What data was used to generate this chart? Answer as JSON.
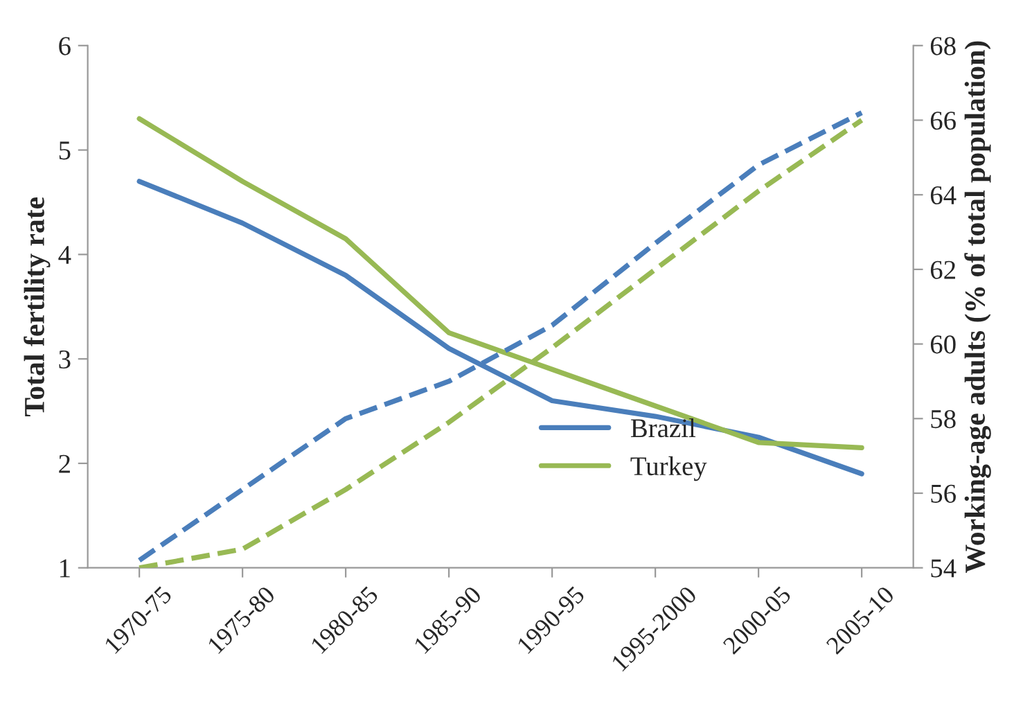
{
  "chart_data": {
    "type": "line",
    "ylabel": "Total fertility rate",
    "y2label": "Working-age adults (% of total population)",
    "categories": [
      "1970-75",
      "1975-80",
      "1980-85",
      "1985-90",
      "1990-95",
      "1995-2000",
      "2000-05",
      "2005-10"
    ],
    "series": [
      {
        "name": "Brazil",
        "color": "#4a7ebb",
        "values": [
          4.7,
          4.3,
          3.8,
          3.1,
          2.6,
          2.45,
          2.25,
          1.9
        ],
        "line_style": "solid"
      },
      {
        "name": "Turkey",
        "color": "#98b954",
        "values": [
          5.3,
          4.7,
          4.15,
          3.25,
          2.9,
          2.55,
          2.2,
          2.15
        ],
        "line_style": "solid"
      },
      {
        "color": "#4a7ebb",
        "values": [
          54.2,
          56.1,
          58.0,
          59.0,
          60.5,
          62.7,
          64.8,
          66.2
        ],
        "axis": "y2",
        "line_style": "dashed"
      },
      {
        "color": "#98b954",
        "values": [
          54.0,
          54.5,
          56.1,
          57.9,
          59.9,
          62.0,
          64.1,
          66.0
        ],
        "axis": "y2",
        "line_style": "dashed"
      }
    ],
    "ylim": [
      1,
      6
    ],
    "yticks": [
      1,
      2,
      3,
      4,
      5,
      6
    ],
    "y2lim": [
      54,
      68
    ],
    "y2ticks": [
      54,
      56,
      58,
      60,
      62,
      64,
      66,
      68
    ],
    "grid": false,
    "legend": "bottom right",
    "marker": "none"
  }
}
